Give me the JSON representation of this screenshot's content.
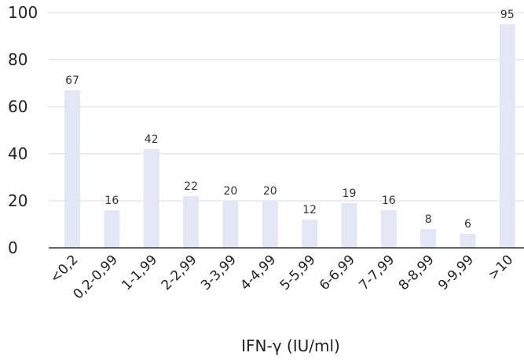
{
  "chart_data": {
    "type": "bar",
    "xlabel": "IFN-γ (IU/ml)",
    "ylabel": "",
    "ylim": [
      0,
      100
    ],
    "yticks": [
      0,
      20,
      40,
      60,
      80,
      100
    ],
    "grid": "horizontal",
    "categories": [
      "<0,2",
      "0,2-0,99",
      "1-1,99",
      "2-2,99",
      "3-3,99",
      "4-4,99",
      "5-5,99",
      "6-6,99",
      "7-7,99",
      "8-8,99",
      "9-9,99",
      ">10"
    ],
    "values": [
      67,
      16,
      42,
      22,
      20,
      20,
      12,
      19,
      16,
      8,
      6,
      95
    ],
    "colors": {
      "bar": "#e3e7f3",
      "grid": "#d9d9d9",
      "axis": "#333333"
    }
  }
}
